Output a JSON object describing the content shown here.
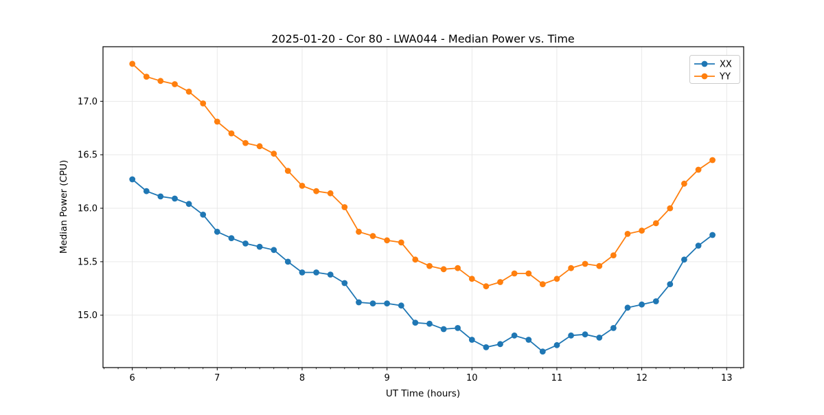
{
  "chart_data": {
    "type": "line",
    "title": "2025-01-20 - Cor 80 - LWA044 - Median Power vs. Time",
    "xlabel": "UT Time (hours)",
    "ylabel": "Median Power (CPU)",
    "xlim": [
      5.655,
      13.2
    ],
    "ylim": [
      14.51,
      17.51
    ],
    "x_major_ticks": [
      6,
      7,
      8,
      9,
      10,
      11,
      12,
      13
    ],
    "x_minor_tick_step": 0.16667,
    "y_major_ticks": [
      15.0,
      15.5,
      16.0,
      16.5,
      17.0
    ],
    "grid": true,
    "legend_position": "upper right",
    "background": "#ffffff",
    "grid_color": "#e6e6e6",
    "x": [
      6.0,
      6.167,
      6.333,
      6.5,
      6.667,
      6.833,
      7.0,
      7.167,
      7.333,
      7.5,
      7.667,
      7.833,
      8.0,
      8.167,
      8.333,
      8.5,
      8.667,
      8.833,
      9.0,
      9.167,
      9.333,
      9.5,
      9.667,
      9.833,
      10.0,
      10.167,
      10.333,
      10.5,
      10.667,
      10.833,
      11.0,
      11.167,
      11.333,
      11.5,
      11.667,
      11.833,
      12.0,
      12.167,
      12.333,
      12.5,
      12.667,
      12.833
    ],
    "series": [
      {
        "name": "XX",
        "color": "#1f77b4",
        "values": [
          16.27,
          16.16,
          16.11,
          16.09,
          16.04,
          15.94,
          15.78,
          15.72,
          15.67,
          15.64,
          15.61,
          15.5,
          15.4,
          15.4,
          15.38,
          15.3,
          15.12,
          15.11,
          15.11,
          15.09,
          14.93,
          14.92,
          14.87,
          14.88,
          14.77,
          14.7,
          14.73,
          14.81,
          14.77,
          14.66,
          14.72,
          14.81,
          14.82,
          14.79,
          14.88,
          15.07,
          15.1,
          15.13,
          15.29,
          15.52,
          15.65,
          15.75
        ]
      },
      {
        "name": "YY",
        "color": "#ff7f0e",
        "values": [
          17.35,
          17.23,
          17.19,
          17.16,
          17.09,
          16.98,
          16.81,
          16.7,
          16.61,
          16.58,
          16.51,
          16.35,
          16.21,
          16.16,
          16.14,
          16.01,
          15.78,
          15.74,
          15.7,
          15.68,
          15.52,
          15.46,
          15.43,
          15.44,
          15.34,
          15.27,
          15.31,
          15.39,
          15.39,
          15.29,
          15.34,
          15.44,
          15.48,
          15.46,
          15.56,
          15.76,
          15.79,
          15.86,
          16.0,
          16.23,
          16.36,
          16.45
        ]
      }
    ]
  }
}
